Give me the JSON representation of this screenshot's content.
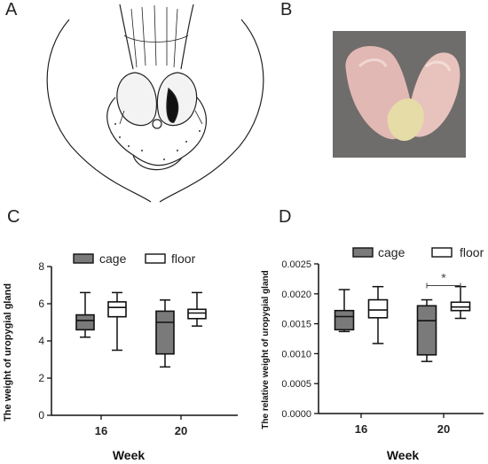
{
  "panels": {
    "a": "A",
    "b": "B",
    "c": "C",
    "d": "D"
  },
  "colors": {
    "cage": "#7a7a7a",
    "floor": "#ffffff",
    "stroke": "#111111"
  },
  "chart_data": [
    {
      "type": "box",
      "panel": "C",
      "ylabel": "The weight of uropygial gland",
      "xlabel": "Week",
      "categories": [
        "16",
        "20"
      ],
      "yticks": [
        "0",
        "2",
        "4",
        "6",
        "8"
      ],
      "ylim": [
        0,
        8
      ],
      "legend": [
        "cage",
        "floor"
      ],
      "legend_position": "top-center",
      "series": [
        {
          "name": "cage",
          "boxes": [
            {
              "min": 4.2,
              "q1": 4.6,
              "median": 5.1,
              "q3": 5.4,
              "max": 6.6
            },
            {
              "min": 2.6,
              "q1": 3.3,
              "median": 5.0,
              "q3": 5.6,
              "max": 6.2
            }
          ]
        },
        {
          "name": "floor",
          "boxes": [
            {
              "min": 3.5,
              "q1": 5.3,
              "median": 5.8,
              "q3": 6.1,
              "max": 6.6
            },
            {
              "min": 4.8,
              "q1": 5.2,
              "median": 5.5,
              "q3": 5.7,
              "max": 6.6
            }
          ]
        }
      ],
      "annotations": []
    },
    {
      "type": "box",
      "panel": "D",
      "ylabel": "The relative weight of uropygial gland",
      "xlabel": "Week",
      "categories": [
        "16",
        "20"
      ],
      "yticks": [
        "0.0000",
        "0.0005",
        "0.0010",
        "0.0015",
        "0.0020",
        "0.0025"
      ],
      "ylim": [
        0,
        0.0025
      ],
      "legend": [
        "cage",
        "floor"
      ],
      "legend_position": "top-center",
      "series": [
        {
          "name": "cage",
          "boxes": [
            {
              "min": 0.00137,
              "q1": 0.0014,
              "median": 0.00162,
              "q3": 0.00172,
              "max": 0.00207
            },
            {
              "min": 0.00087,
              "q1": 0.00098,
              "median": 0.00155,
              "q3": 0.0018,
              "max": 0.0019
            }
          ]
        },
        {
          "name": "floor",
          "boxes": [
            {
              "min": 0.00117,
              "q1": 0.0016,
              "median": 0.00173,
              "q3": 0.0019,
              "max": 0.00212
            },
            {
              "min": 0.00159,
              "q1": 0.00172,
              "median": 0.00178,
              "q3": 0.00186,
              "max": 0.00212
            }
          ]
        }
      ],
      "annotations": [
        {
          "text": "*",
          "category": "20",
          "value": 0.00227
        }
      ]
    }
  ]
}
